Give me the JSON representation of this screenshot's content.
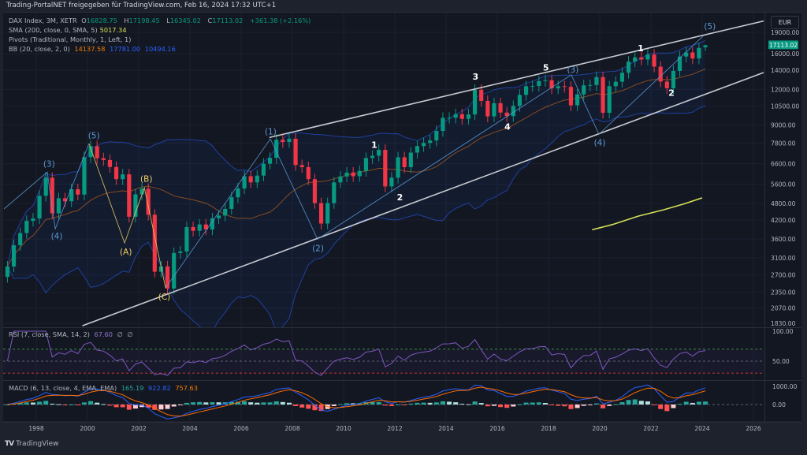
{
  "header": {
    "title": "Trading-PortalNET freigegeben für TradingView.com, Feb 16, 2024 17:32 UTC+1"
  },
  "legend": {
    "symbol": "DAX Index, 3M, XETR",
    "o_label": "O",
    "o": "16828.75",
    "h_label": "H",
    "h": "17198.45",
    "l_label": "L",
    "l": "16345.02",
    "c_label": "C",
    "c": "17113.02",
    "change": "+361.38 (+2.16%)",
    "sma_label": "SMA (200, close, 0, SMA, 5)",
    "sma_value": "5017.34",
    "pivots_label": "Pivots (Traditional, Monthly, 1, Left, 1)",
    "bb_label": "BB (20, close, 2, 0)",
    "bb_basis": "14137.58",
    "bb_upper": "17781.00",
    "bb_lower": "10494.16"
  },
  "rsi_legend": {
    "label": "RSI (7, close, SMA, 14, 2)",
    "value": "67.60",
    "extra1": "∅",
    "extra2": "∅"
  },
  "macd_legend": {
    "label": "MACD (6, 13, close, 4, EMA, EMA)",
    "hist": "165.19",
    "macd": "922.82",
    "signal": "757.63"
  },
  "price_axis": {
    "currency": "EUR",
    "last_price": "17113.02"
  },
  "footer": {
    "brand": "TradingView"
  },
  "colors": {
    "up": "#089981",
    "down": "#f23645",
    "bb_band": "#2962ff",
    "bb_basis": "#b8621b",
    "sma": "#d4e157",
    "rsi": "#7e57c2",
    "macd": "#2962ff",
    "signal": "#ff6d00",
    "wave_blue": "#5b9bd5",
    "wave_yellow": "#f0d264",
    "background": "#131722"
  },
  "chart_data": {
    "type": "candlestick",
    "title": "DAX Index, 3M, XETR",
    "scale": "log",
    "first_period": "1996Q4",
    "period": "quarter",
    "closes": [
      2889,
      3430,
      3780,
      4170,
      4250,
      5100,
      5900,
      4430,
      5000,
      4880,
      5380,
      5150,
      6960,
      7600,
      6900,
      6800,
      6430,
      5830,
      6060,
      4310,
      5160,
      5400,
      4380,
      2770,
      2890,
      2420,
      3220,
      3260,
      3965,
      3850,
      4050,
      3890,
      4256,
      4350,
      4590,
      5040,
      5410,
      5970,
      5680,
      6000,
      6600,
      6920,
      8010,
      7860,
      8070,
      6530,
      6420,
      5830,
      4810,
      4080,
      4810,
      5680,
      5960,
      6150,
      5970,
      6230,
      6910,
      7040,
      7380,
      5500,
      5900,
      6950,
      6420,
      7220,
      7610,
      7800,
      7960,
      8590,
      9550,
      9560,
      9830,
      9470,
      9810,
      11970,
      10940,
      9660,
      10740,
      9960,
      9680,
      10510,
      11480,
      12310,
      12330,
      12830,
      12920,
      12100,
      12310,
      12250,
      10560,
      11530,
      12400,
      12430,
      13250,
      9940,
      12310,
      12760,
      13720,
      15010,
      15530,
      15260,
      15880,
      14410,
      12780,
      12110,
      13920,
      15630,
      16150,
      15390,
      16750,
      17113.02
    ],
    "last_candle": {
      "open": 16828.75,
      "high": 17198.45,
      "low": 16345.02,
      "close": 17113.02
    },
    "y_ticks": [
      19000,
      16000,
      14000,
      12000,
      10500,
      9000,
      7800,
      6600,
      5600,
      4800,
      4200,
      3600,
      3100,
      2700,
      2350,
      2070,
      1830
    ],
    "y_tick_labels": [
      "19000.00",
      "16000.00",
      "14000.00",
      "12000.00",
      "10500.00",
      "9000.00",
      "7800.00",
      "6600.00",
      "5600.00",
      "4800.00",
      "4200.00",
      "3600.00",
      "3100.00",
      "2700.00",
      "2350.00",
      "2070.00",
      "1830.00"
    ],
    "x_ticks": [
      "1998",
      "2000",
      "2002",
      "2004",
      "2006",
      "2008",
      "2010",
      "2012",
      "2014",
      "2016",
      "2018",
      "2020",
      "2022",
      "2024",
      "2026"
    ],
    "sma_series": [
      [
        2019.7,
        3880
      ],
      [
        2020.5,
        4050
      ],
      [
        2021.5,
        4330
      ],
      [
        2022.5,
        4560
      ],
      [
        2023.3,
        4780
      ],
      [
        2024.0,
        5017.34
      ]
    ],
    "trendlines": [
      {
        "name": "upper-channel",
        "points": [
          [
            2007.1,
            8150
          ],
          [
            2026.4,
            20800
          ]
        ]
      },
      {
        "name": "lower-channel",
        "points": [
          [
            1999.8,
            1794
          ],
          [
            2026.4,
            13740
          ]
        ]
      }
    ],
    "wave_paths": [
      {
        "color": "blue",
        "points": [
          [
            1996.74,
            4590
          ],
          [
            1998.43,
            6170
          ],
          [
            1998.74,
            3910
          ],
          [
            2000.06,
            7760
          ]
        ]
      },
      {
        "color": "yellow",
        "points": [
          [
            2000.06,
            7760
          ],
          [
            2001.45,
            3490
          ],
          [
            2002.22,
            5440
          ],
          [
            2003.05,
            2430
          ]
        ]
      },
      {
        "color": "blue",
        "points": [
          [
            2003.05,
            2430
          ],
          [
            2007.14,
            8060
          ],
          [
            2008.98,
            3600
          ],
          [
            2018.89,
            13490
          ],
          [
            2019.97,
            8370
          ],
          [
            2024.06,
            18510
          ]
        ]
      }
    ],
    "wave_labels": [
      {
        "text": "(3)",
        "color": "blue",
        "at": [
          1998.5,
          6600
        ]
      },
      {
        "text": "(4)",
        "color": "blue",
        "at": [
          1998.8,
          3700
        ]
      },
      {
        "text": "(5)",
        "color": "blue",
        "at": [
          2000.25,
          8300
        ]
      },
      {
        "text": "(A)",
        "color": "yellow",
        "at": [
          2001.5,
          3260
        ]
      },
      {
        "text": "(B)",
        "color": "yellow",
        "at": [
          2002.3,
          5850
        ]
      },
      {
        "text": "(C)",
        "color": "yellow",
        "at": [
          2003.0,
          2270
        ]
      },
      {
        "text": "(1)",
        "color": "blue",
        "at": [
          2007.15,
          8580
        ]
      },
      {
        "text": "(2)",
        "color": "blue",
        "at": [
          2009.0,
          3350
        ]
      },
      {
        "text": "(3)",
        "color": "blue",
        "at": [
          2018.95,
          14100
        ]
      },
      {
        "text": "(4)",
        "color": "blue",
        "at": [
          2020.0,
          7850
        ]
      },
      {
        "text": "(5)",
        "color": "blue",
        "at": [
          2024.3,
          20000
        ]
      },
      {
        "text": "1",
        "color": "white",
        "at": [
          2011.2,
          7700
        ]
      },
      {
        "text": "2",
        "color": "white",
        "at": [
          2012.2,
          5050
        ]
      },
      {
        "text": "3",
        "color": "white",
        "at": [
          2015.15,
          13300
        ]
      },
      {
        "text": "4",
        "color": "white",
        "at": [
          2016.4,
          8900
        ]
      },
      {
        "text": "5",
        "color": "white",
        "at": [
          2017.9,
          14300
        ]
      },
      {
        "text": "1",
        "color": "white",
        "at": [
          2021.6,
          16700
        ]
      },
      {
        "text": "2",
        "color": "white",
        "at": [
          2022.8,
          11700
        ]
      }
    ],
    "rsi": {
      "period": 7,
      "levels": [
        70,
        50,
        30
      ],
      "ylim": [
        0,
        100
      ],
      "tick_labels": [
        "100.00",
        "50.00"
      ]
    },
    "macd": {
      "fast": 6,
      "slow": 13,
      "signal": 4,
      "tick_labels": [
        "1000.00",
        "0.00"
      ]
    }
  }
}
